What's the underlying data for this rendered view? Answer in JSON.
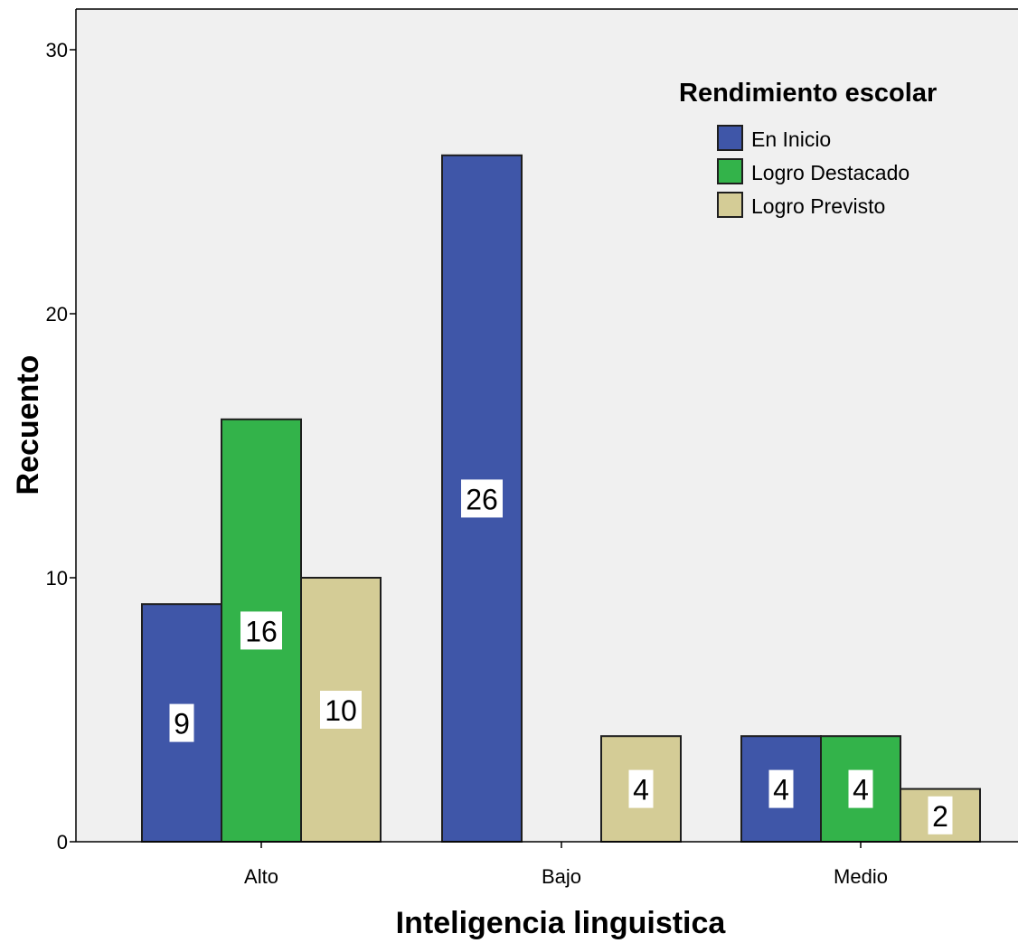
{
  "chart_data": {
    "type": "bar",
    "categories": [
      "Alto",
      "Bajo",
      "Medio"
    ],
    "series": [
      {
        "name": "En Inicio",
        "color": "#3f56a8",
        "values": [
          9,
          26,
          4
        ]
      },
      {
        "name": "Logro Destacado",
        "color": "#33b34a",
        "values": [
          16,
          0,
          4
        ]
      },
      {
        "name": "Logro Previsto",
        "color": "#d4cc96",
        "values": [
          10,
          4,
          2
        ]
      }
    ],
    "xlabel": "Inteligencia linguistica",
    "ylabel": "Recuento",
    "ylim": [
      0,
      30
    ],
    "yticks": [
      0,
      10,
      20,
      30
    ],
    "legend_title": "Rendimiento escolar",
    "legend_position": "top-right",
    "grid": false,
    "plot_background": "#f0f0f0",
    "data_labels": true
  }
}
